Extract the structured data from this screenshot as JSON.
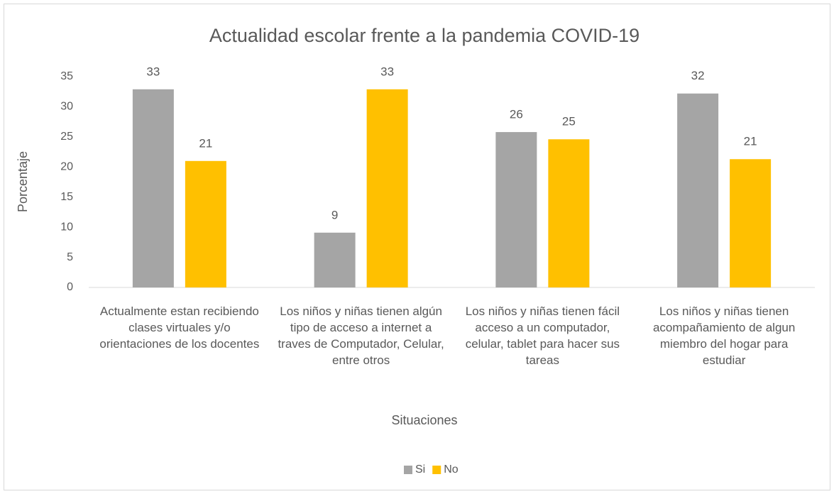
{
  "chart_data": {
    "type": "bar",
    "title": "Actualidad escolar frente a la pandemia COVID-19",
    "x_label": "Situaciones",
    "y_label": "Porcentaje",
    "categories": [
      "Actualmente estan recibiendo clases virtuales y/o orientaciones de los docentes",
      "Los niños y niñas tienen algún tipo de acceso a internet a traves de Computador, Celular, entre otros",
      "Los niños y niñas tienen fácil acceso a un computador, celular, tablet para hacer sus tareas",
      "Los niños y niñas tienen acompañamiento de algun miembro del hogar para estudiar"
    ],
    "series": [
      {
        "name": "Si",
        "color": "#a5a5a5",
        "values": [
          32.9,
          9.1,
          25.8,
          32.2
        ],
        "value_labels": [
          "33",
          "9",
          "26",
          "32"
        ]
      },
      {
        "name": "No",
        "color": "#ffc000",
        "values": [
          21.0,
          32.9,
          24.6,
          21.3
        ],
        "value_labels": [
          "21",
          "33",
          "25",
          "21"
        ]
      }
    ],
    "ylim": [
      0,
      35
    ],
    "yticks": [
      0,
      5,
      10,
      15,
      20,
      25,
      30,
      35
    ],
    "grid": false,
    "legend": "bottom"
  }
}
